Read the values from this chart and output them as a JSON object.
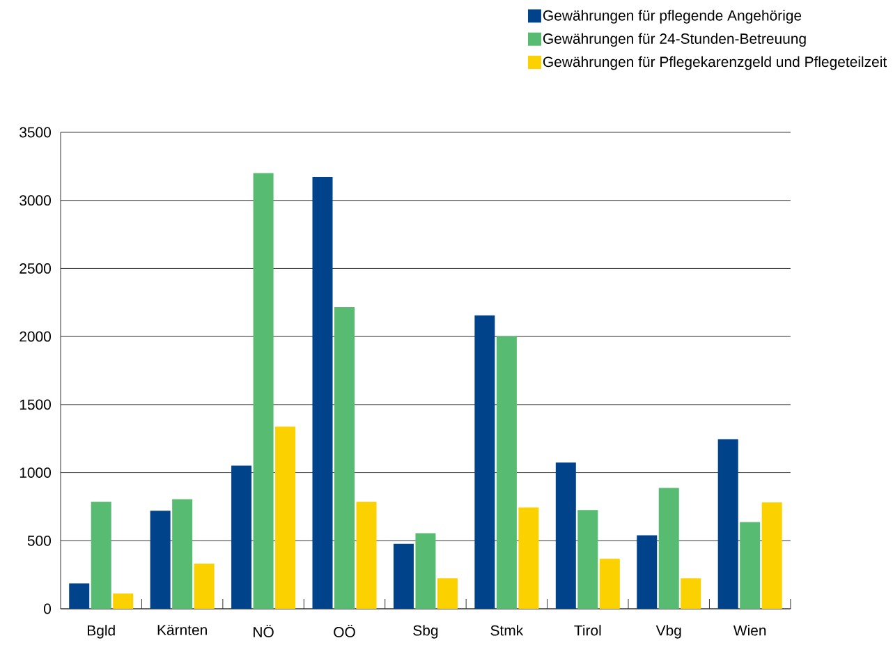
{
  "chart_data": {
    "type": "bar",
    "categories": [
      "Bgld",
      "Kärnten",
      "NÖ",
      "OÖ",
      "Sbg",
      "Stmk",
      "Tirol",
      "Vbg",
      "Wien"
    ],
    "series": [
      {
        "name": "Gewährungen für pflegende Angehörige",
        "color": "#00438a",
        "values": [
          187,
          720,
          1051,
          3173,
          477,
          2156,
          1075,
          540,
          1246
        ]
      },
      {
        "name": "Gewährungen für 24-Stunden-Betreuung",
        "color": "#58bb72",
        "values": [
          786,
          805,
          3200,
          2216,
          555,
          2002,
          725,
          888,
          637
        ]
      },
      {
        "name": "Gewährungen für Pflegekarenzgeld und Pflegeteilzeit",
        "color": "#fcd100",
        "values": [
          112,
          331,
          1338,
          786,
          224,
          745,
          367,
          224,
          781
        ]
      }
    ],
    "ylim": [
      0,
      3500
    ],
    "yticks": [
      0,
      500,
      1000,
      1500,
      2000,
      2500,
      3000,
      3500
    ],
    "grid": "y",
    "legend": "top right"
  }
}
